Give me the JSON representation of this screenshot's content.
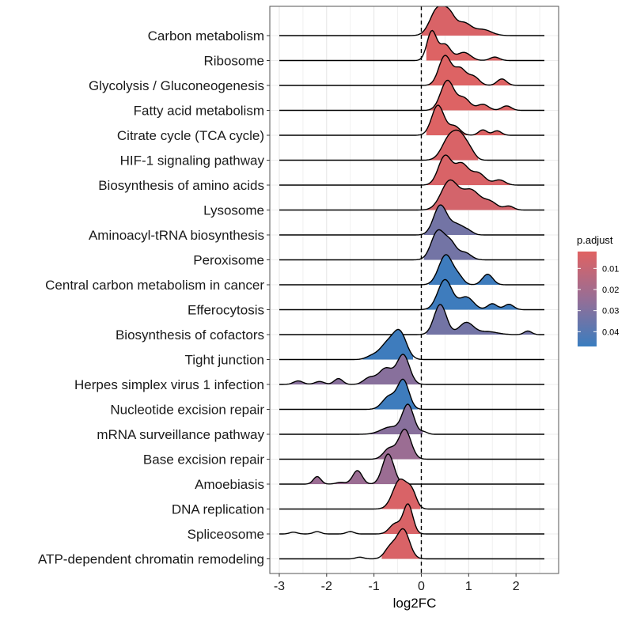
{
  "chart_data": {
    "type": "ridgeline",
    "xlabel": "log2FC",
    "xlim": [
      -3.2,
      2.9
    ],
    "x_ticks": [
      -3,
      -2,
      -1,
      0,
      1,
      2
    ],
    "x_tick_labels": [
      "-3",
      "-2",
      "-1",
      "0",
      "1",
      "2"
    ],
    "reference_line_x": 0,
    "grid": true,
    "legend": {
      "title": "p.adjust",
      "position": "right",
      "ticks": [
        0.01,
        0.02,
        0.03,
        0.04
      ],
      "tick_labels": [
        "0.01",
        "0.02",
        "0.03",
        "0.04"
      ],
      "range": [
        0.002,
        0.047
      ],
      "colors": [
        "#E06262",
        "#3A7DBF"
      ]
    },
    "series": [
      {
        "name": "Carbon metabolism",
        "p_adjust": 0.004,
        "x_min": -3.0,
        "x_max": 2.6,
        "fill_range": [
          0.0,
          1.65
        ],
        "peaks": [
          [
            0.35,
            1.0,
            0.16
          ],
          [
            0.6,
            0.6,
            0.12
          ],
          [
            0.9,
            0.45,
            0.15
          ],
          [
            1.3,
            0.22,
            0.18
          ]
        ]
      },
      {
        "name": "Ribosome",
        "p_adjust": 0.003,
        "x_min": -3.0,
        "x_max": 2.6,
        "fill_range": [
          0.08,
          1.72
        ],
        "peaks": [
          [
            0.22,
            1.0,
            0.1
          ],
          [
            0.5,
            0.55,
            0.12
          ],
          [
            0.9,
            0.28,
            0.14
          ],
          [
            1.55,
            0.12,
            0.1
          ]
        ]
      },
      {
        "name": "Glycolysis / Gluconeogenesis",
        "p_adjust": 0.003,
        "x_min": -3.0,
        "x_max": 2.6,
        "fill_range": [
          0.08,
          2.0
        ],
        "peaks": [
          [
            0.5,
            1.0,
            0.13
          ],
          [
            0.82,
            0.55,
            0.12
          ],
          [
            1.1,
            0.3,
            0.12
          ],
          [
            1.7,
            0.22,
            0.1
          ]
        ]
      },
      {
        "name": "Fatty acid metabolism",
        "p_adjust": 0.003,
        "x_min": -3.0,
        "x_max": 2.6,
        "fill_range": [
          0.08,
          2.0
        ],
        "peaks": [
          [
            0.55,
            1.0,
            0.14
          ],
          [
            0.9,
            0.4,
            0.13
          ],
          [
            1.3,
            0.2,
            0.12
          ],
          [
            1.8,
            0.15,
            0.1
          ]
        ]
      },
      {
        "name": "Citrate cycle (TCA cycle)",
        "p_adjust": 0.003,
        "x_min": -3.0,
        "x_max": 2.6,
        "fill_range": [
          0.08,
          2.0
        ],
        "peaks": [
          [
            0.35,
            1.0,
            0.13
          ],
          [
            0.7,
            0.3,
            0.12
          ],
          [
            1.3,
            0.18,
            0.09
          ],
          [
            1.6,
            0.15,
            0.09
          ]
        ]
      },
      {
        "name": "HIF-1 signaling pathway",
        "p_adjust": 0.004,
        "x_min": -3.0,
        "x_max": 2.6,
        "fill_range": [
          0.1,
          1.2
        ],
        "peaks": [
          [
            0.6,
            0.85,
            0.16
          ],
          [
            0.85,
            0.75,
            0.14
          ],
          [
            1.05,
            0.2,
            0.1
          ]
        ]
      },
      {
        "name": "Biosynthesis of amino acids",
        "p_adjust": 0.004,
        "x_min": -3.0,
        "x_max": 2.6,
        "fill_range": [
          0.1,
          1.9
        ],
        "peaks": [
          [
            0.5,
            0.85,
            0.14
          ],
          [
            0.85,
            0.6,
            0.14
          ],
          [
            1.2,
            0.35,
            0.15
          ],
          [
            1.65,
            0.15,
            0.12
          ]
        ]
      },
      {
        "name": "Lysosome",
        "p_adjust": 0.006,
        "x_min": -3.0,
        "x_max": 2.6,
        "fill_range": [
          0.1,
          2.2
        ],
        "peaks": [
          [
            0.6,
            0.9,
            0.18
          ],
          [
            1.05,
            0.6,
            0.18
          ],
          [
            1.45,
            0.25,
            0.15
          ],
          [
            1.85,
            0.12,
            0.1
          ]
        ]
      },
      {
        "name": "Aminoacyl-tRNA biosynthesis",
        "p_adjust": 0.033,
        "x_min": -3.0,
        "x_max": 2.6,
        "fill_range": [
          0.05,
          1.2
        ],
        "peaks": [
          [
            0.4,
            1.0,
            0.14
          ],
          [
            0.75,
            0.35,
            0.15
          ],
          [
            1.0,
            0.1,
            0.1
          ]
        ]
      },
      {
        "name": "Peroxisome",
        "p_adjust": 0.033,
        "x_min": -3.0,
        "x_max": 2.6,
        "fill_range": [
          0.05,
          1.2
        ],
        "peaks": [
          [
            0.35,
            1.0,
            0.14
          ],
          [
            0.62,
            0.55,
            0.12
          ],
          [
            0.92,
            0.25,
            0.13
          ]
        ]
      },
      {
        "name": "Central carbon metabolism in cancer",
        "p_adjust": 0.046,
        "x_min": -3.0,
        "x_max": 2.6,
        "fill_range": [
          0.15,
          1.7
        ],
        "peaks": [
          [
            0.52,
            1.0,
            0.15
          ],
          [
            0.8,
            0.2,
            0.1
          ],
          [
            1.4,
            0.35,
            0.11
          ]
        ]
      },
      {
        "name": "Efferocytosis",
        "p_adjust": 0.046,
        "x_min": -3.0,
        "x_max": 2.6,
        "fill_range": [
          0.1,
          2.1
        ],
        "peaks": [
          [
            0.5,
            1.0,
            0.15
          ],
          [
            0.95,
            0.42,
            0.15
          ],
          [
            1.5,
            0.2,
            0.1
          ],
          [
            1.85,
            0.18,
            0.1
          ]
        ]
      },
      {
        "name": "Biosynthesis of cofactors",
        "p_adjust": 0.033,
        "x_min": -3.0,
        "x_max": 2.6,
        "fill_range": [
          0.08,
          2.6
        ],
        "peaks": [
          [
            0.4,
            1.0,
            0.13
          ],
          [
            0.95,
            0.4,
            0.15
          ],
          [
            1.4,
            0.1,
            0.2
          ],
          [
            2.25,
            0.12,
            0.08
          ]
        ]
      },
      {
        "name": "Tight junction",
        "p_adjust": 0.046,
        "x_min": -3.0,
        "x_max": 2.6,
        "fill_range": [
          -1.25,
          -0.15
        ],
        "peaks": [
          [
            -0.45,
            1.0,
            0.14
          ],
          [
            -0.72,
            0.6,
            0.16
          ],
          [
            -1.05,
            0.12,
            0.12
          ]
        ]
      },
      {
        "name": "Herpes simplex virus 1 infection",
        "p_adjust": 0.028,
        "x_min": -3.0,
        "x_max": 2.6,
        "fill_range": [
          -3.0,
          0.0
        ],
        "peaks": [
          [
            -0.38,
            1.0,
            0.13
          ],
          [
            -0.75,
            0.55,
            0.15
          ],
          [
            -1.1,
            0.22,
            0.12
          ],
          [
            -1.75,
            0.2,
            0.09
          ],
          [
            -2.15,
            0.1,
            0.1
          ],
          [
            -2.6,
            0.12,
            0.1
          ]
        ]
      },
      {
        "name": "Nucleotide excision repair",
        "p_adjust": 0.046,
        "x_min": -3.0,
        "x_max": 2.6,
        "fill_range": [
          -1.0,
          -0.05
        ],
        "peaks": [
          [
            -0.38,
            1.0,
            0.12
          ],
          [
            -0.68,
            0.45,
            0.14
          ]
        ]
      },
      {
        "name": "mRNA surveillance pathway",
        "p_adjust": 0.028,
        "x_min": -3.0,
        "x_max": 2.6,
        "fill_range": [
          -1.2,
          0.05
        ],
        "peaks": [
          [
            -0.28,
            1.0,
            0.12
          ],
          [
            -0.65,
            0.25,
            0.2
          ],
          [
            0.05,
            0.08,
            0.08
          ]
        ]
      },
      {
        "name": "Base excision repair",
        "p_adjust": 0.023,
        "x_min": -3.0,
        "x_max": 2.6,
        "fill_range": [
          -1.0,
          0.0
        ],
        "peaks": [
          [
            -0.35,
            1.0,
            0.13
          ],
          [
            -0.68,
            0.35,
            0.12
          ]
        ]
      },
      {
        "name": "Amoebiasis",
        "p_adjust": 0.023,
        "x_min": -3.0,
        "x_max": 2.6,
        "fill_range": [
          -2.4,
          -0.4
        ],
        "peaks": [
          [
            -0.7,
            1.0,
            0.12
          ],
          [
            -1.35,
            0.45,
            0.1
          ],
          [
            -2.2,
            0.25,
            0.08
          ],
          [
            -1.7,
            0.06,
            0.1
          ]
        ]
      },
      {
        "name": "DNA replication",
        "p_adjust": 0.004,
        "x_min": -3.0,
        "x_max": 2.6,
        "fill_range": [
          -0.85,
          0.0
        ],
        "peaks": [
          [
            -0.45,
            1.0,
            0.15
          ],
          [
            -0.2,
            0.5,
            0.1
          ]
        ]
      },
      {
        "name": "Spliceosome",
        "p_adjust": 0.004,
        "x_min": -3.0,
        "x_max": 2.6,
        "fill_range": [
          -0.85,
          0.0
        ],
        "peaks": [
          [
            -0.28,
            1.0,
            0.1
          ],
          [
            -0.55,
            0.35,
            0.12
          ],
          [
            -1.5,
            0.08,
            0.08
          ],
          [
            -2.2,
            0.08,
            0.08
          ],
          [
            -2.7,
            0.06,
            0.08
          ]
        ]
      },
      {
        "name": "ATP-dependent chromatin remodeling",
        "p_adjust": 0.004,
        "x_min": -3.0,
        "x_max": 2.6,
        "fill_range": [
          -0.85,
          0.0
        ],
        "peaks": [
          [
            -0.38,
            1.0,
            0.13
          ],
          [
            -0.65,
            0.4,
            0.12
          ],
          [
            -1.3,
            0.06,
            0.08
          ]
        ]
      }
    ]
  }
}
